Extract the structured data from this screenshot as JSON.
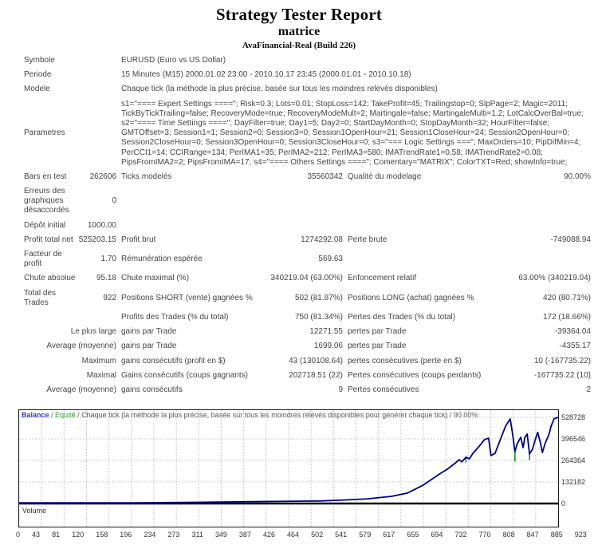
{
  "header": {
    "title": "Strategy Tester Report",
    "strategy": "matrice",
    "account": "AvaFinancial-Real (Build 226)"
  },
  "table": {
    "info_rows": [
      {
        "label": "Symbole",
        "value": "EURUSD (Euro vs US Dollar)"
      },
      {
        "label": "Periode",
        "value": "15 Minutes (M15) 2000.01.02 23:00 - 2010.10.17 23:45 (2000.01.01 - 2010.10.18)"
      },
      {
        "label": "Modele",
        "value": "Chaque tick (la méthode la plus précise, basée sur tous les moindres relevés disponibles)"
      },
      {
        "label": "Parametres",
        "lines": [
          "s1=\"==== Expert Settings ====\"; Risk=0.3; Lots=0.01; StopLoss=142; TakeProfit=45; Trailingstop=0; SlpPage=2; Magic=2011;",
          "TickByTickTrailing=false; RecoveryMode=true; RecoveryModeMult=2; Martingale=false; MartingaleMulti=1.2; LotCalcOverBal=true;",
          "s2=\"==== Time Settings ====\"; DayFilter=true; Day1=5; Day2=0; StartDayMonth=0; StopDayMonth=32; HourFilter=false;",
          "GMTOffset=3; Session1=1; Session2=0; Session3=0; Session1OpenHour=21; Session1CloseHour=24; Session2OpenHour=0;",
          "Session2CloseHour=0; Session3OpenHour=0; Session3CloseHour=0; s3=\"=== Logic Settings ===\"; MaxOrders=10; PipDifMin=4;",
          "PerCCI1=14; CCIRange=134; PerIMA1=35; PerIMA2=212; PerIMA3=580; IMATrendRate1=0.58; IMATrendRate2=0.08;",
          "PipsFromIMA2=2; PipsFromIMA=17; s4=\"==== Others Settings ====\"; Comentary=\"MATRIX\"; ColorTXT=Red; showInfo=true;"
        ]
      }
    ],
    "stat_rows": [
      {
        "c1": "Bars en test",
        "c2": "262606",
        "c3": "Ticks modelés",
        "c4": "35560342",
        "c5": "Qualité du modelage",
        "c6": "90.00%"
      },
      {
        "c1": "Erreurs des graphiques désaccordés",
        "c2": "0",
        "c3": "",
        "c4": "",
        "c5": "",
        "c6": ""
      },
      {
        "c1": "Dépôt initial",
        "c2": "1000.00",
        "c3": "",
        "c4": "",
        "c5": "",
        "c6": ""
      },
      {
        "c1": "Profit total net",
        "c2": "525203.15",
        "c3": "Profit brut",
        "c4": "1274292.08",
        "c5": "Perte brute",
        "c6": "-749088.94"
      },
      {
        "c1": "Facteur de profit",
        "c2": "1.70",
        "c3": "Rémunération espérée",
        "c4": "569.63",
        "c5": "",
        "c6": ""
      },
      {
        "c1": "Chute absolue",
        "c2": "95.18",
        "c3": "Chute maximal (%)",
        "c4": "340219.04 (63.00%)",
        "c5": "Enfoncement relatif",
        "c6": "63.00% (340219.04)"
      },
      {
        "c1": "Total des Trades",
        "c2": "922",
        "c3": "Positions SHORT (vente) gagnées %",
        "c4": "502 (81.87%)",
        "c5": "Positions LONG (achat) gagnées %",
        "c6": "420 (80.71%)"
      },
      {
        "c1": "",
        "c2": "",
        "c3": "Profits des Trades (% du total)",
        "c4": "750 (81.34%)",
        "c5": "Pertes des Trades (% du total)",
        "c6": "172 (18.66%)"
      },
      {
        "q": true,
        "c1": "Le plus large",
        "c3": "gains par Trade",
        "c4": "12271.55",
        "c5": "pertes par Trade",
        "c6": "-39364.04"
      },
      {
        "q": true,
        "c1": "Average (moyenne)",
        "c3": "gains par Trade",
        "c4": "1699.06",
        "c5": "pertes par Trade",
        "c6": "-4355.17"
      },
      {
        "q": true,
        "c1": "Maximum",
        "c3": "gains consécutifs (profit en $)",
        "c4": "43 (130108.64)",
        "c5": "pertes consécutives (perte en $)",
        "c6": "10 (-167735.22)"
      },
      {
        "q": true,
        "c1": "Maximal",
        "c3": "Gains consécutifs (coups gagnants)",
        "c4": "202718.51 (22)",
        "c5": "Pertes consécutives (coups perdants)",
        "c6": "-167735.22 (10)"
      },
      {
        "q": true,
        "c1": "Average (moyenne)",
        "c3": "gains consécutifs",
        "c4": "9",
        "c5": "Pertes consécutives",
        "c6": "2"
      }
    ]
  },
  "chart": {
    "legend": {
      "balance_label": "Balance",
      "equity_label": "Equité",
      "separator": " / ",
      "description": "Chaque tick (la méthode la plus précise, basée sur tous les moindres relevés disponibles pour générer chaque tick) / 90.00%"
    },
    "volume_label": "Volume",
    "colors": {
      "balance": "#000080",
      "equity": "#1e8c1e",
      "grid": "#c8c8c8",
      "zero_line": "#000000",
      "legend_balance": "#3c3cc8",
      "legend_equity": "#2f9e2f"
    }
  },
  "chart_data": {
    "type": "line",
    "title": "Balance / Equité",
    "x_range": [
      0,
      923
    ],
    "y_range": [
      0,
      528728
    ],
    "grid": true,
    "legend_position": "top-left",
    "x_ticks": [
      "0",
      "43",
      "81",
      "120",
      "158",
      "196",
      "234",
      "273",
      "311",
      "349",
      "387",
      "426",
      "464",
      "502",
      "541",
      "579",
      "617",
      "655",
      "694",
      "732",
      "770",
      "808",
      "847",
      "885",
      "923"
    ],
    "y_ticks": [
      "528728",
      "396546",
      "264364",
      "132182",
      "0"
    ],
    "series": [
      {
        "name": "Balance",
        "points": [
          [
            0,
            1000
          ],
          [
            100,
            2200
          ],
          [
            200,
            4200
          ],
          [
            300,
            7500
          ],
          [
            400,
            11500
          ],
          [
            515,
            15500
          ],
          [
            560,
            22000
          ],
          [
            597,
            29000
          ],
          [
            638,
            44000
          ],
          [
            665,
            64000
          ],
          [
            692,
            113000
          ],
          [
            720,
            181000
          ],
          [
            733,
            210000
          ],
          [
            744,
            240000
          ],
          [
            754,
            269000
          ],
          [
            758,
            255000
          ],
          [
            765,
            284000
          ],
          [
            771,
            274000
          ],
          [
            777,
            308000
          ],
          [
            788,
            352000
          ],
          [
            797,
            392000
          ],
          [
            804,
            401000
          ],
          [
            808,
            294000
          ],
          [
            815,
            308000
          ],
          [
            825,
            401000
          ],
          [
            833,
            475000
          ],
          [
            841,
            519000
          ],
          [
            845,
            426000
          ],
          [
            849,
            318000
          ],
          [
            853,
            367000
          ],
          [
            859,
            406000
          ],
          [
            863,
            343000
          ],
          [
            866,
            406000
          ],
          [
            870,
            426000
          ],
          [
            874,
            304000
          ],
          [
            879,
            333000
          ],
          [
            885,
            406000
          ],
          [
            888,
            436000
          ],
          [
            893,
            367000
          ],
          [
            896,
            313000
          ],
          [
            901,
            372000
          ],
          [
            907,
            421000
          ],
          [
            911,
            475000
          ],
          [
            916,
            520000
          ],
          [
            923,
            528728
          ]
        ]
      }
    ],
    "equity_dips": [
      [
        765,
        284000,
        252000
      ],
      [
        849,
        318000,
        258000
      ],
      [
        874,
        304000,
        267000
      ]
    ]
  }
}
